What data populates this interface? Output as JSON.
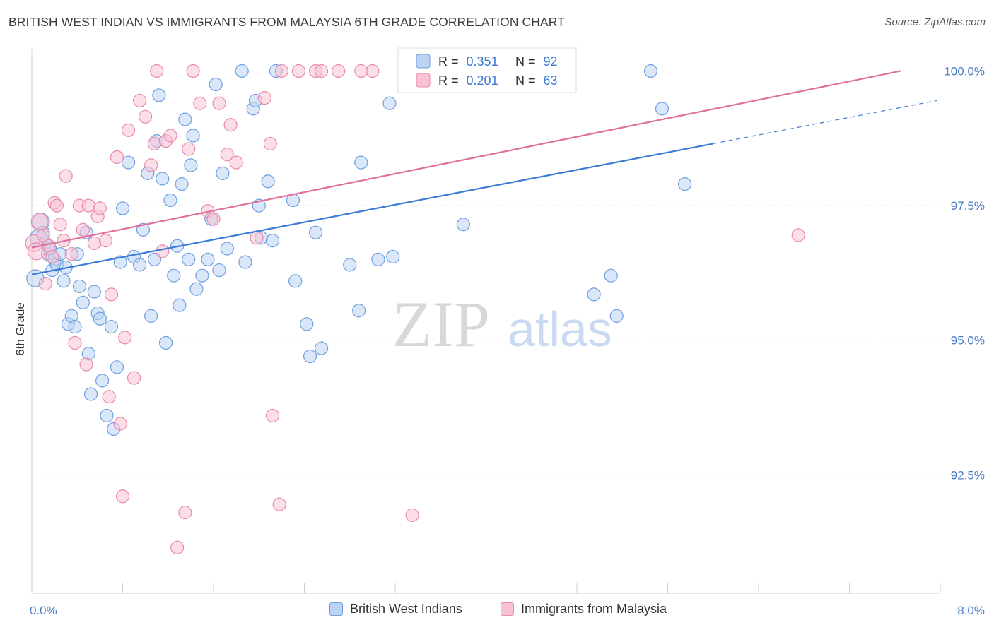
{
  "header": {
    "title": "BRITISH WEST INDIAN VS IMMIGRANTS FROM MALAYSIA 6TH GRADE CORRELATION CHART",
    "source": "Source: ZipAtlas.com"
  },
  "watermark": {
    "zip": "ZIP",
    "atlas": "atlas"
  },
  "colors": {
    "blue": "#6e9fe0",
    "blue_fill": "#bcd3f4",
    "blue_line": "#3a7bd5",
    "pink": "#e98aab",
    "pink_fill": "#f7c3d4",
    "pink_line": "#e0709a",
    "tick_label": "#4a7cc9",
    "grid": "#e4e4e4"
  },
  "chart_data": {
    "type": "scatter",
    "title": "BRITISH WEST INDIAN VS IMMIGRANTS FROM MALAYSIA 6TH GRADE CORRELATION CHART",
    "xlabel": "",
    "ylabel": "6th Grade",
    "xlim": [
      0.0,
      8.0
    ],
    "ylim": [
      90.3,
      100.4
    ],
    "x_tick_labels": [
      "0.0%",
      "8.0%"
    ],
    "y_ticks": [
      92.5,
      95.0,
      97.5,
      100.0
    ],
    "y_tick_labels": [
      "92.5%",
      "95.0%",
      "97.5%",
      "100.0%"
    ],
    "grid": true,
    "legend_top": [
      {
        "r_label": "R =",
        "r": "0.351",
        "n_label": "N =",
        "n": "92"
      },
      {
        "r_label": "R =",
        "r": "0.201",
        "n_label": "N =",
        "n": "63"
      }
    ],
    "series": [
      {
        "name": "British West Indians",
        "color": "#6e9fe0",
        "trend": {
          "x0": 0.0,
          "y0": 96.22,
          "x1": 6.0,
          "y1": 98.65,
          "dash_to_x": 8.0,
          "dash_to_y": 99.45
        },
        "points": [
          [
            0.03,
            96.15
          ],
          [
            0.08,
            97.2
          ],
          [
            0.1,
            97.0
          ],
          [
            0.12,
            96.8
          ],
          [
            0.14,
            96.6
          ],
          [
            0.16,
            96.7
          ],
          [
            0.18,
            96.3
          ],
          [
            0.2,
            96.5
          ],
          [
            0.22,
            96.4
          ],
          [
            0.25,
            96.6
          ],
          [
            0.28,
            96.1
          ],
          [
            0.3,
            96.35
          ],
          [
            0.32,
            95.3
          ],
          [
            0.35,
            95.45
          ],
          [
            0.38,
            95.25
          ],
          [
            0.4,
            96.6
          ],
          [
            0.42,
            96.0
          ],
          [
            0.45,
            95.7
          ],
          [
            0.48,
            97.0
          ],
          [
            0.5,
            94.75
          ],
          [
            0.52,
            94.0
          ],
          [
            0.55,
            95.9
          ],
          [
            0.58,
            95.5
          ],
          [
            0.6,
            95.4
          ],
          [
            0.62,
            94.25
          ],
          [
            0.66,
            93.6
          ],
          [
            0.7,
            95.25
          ],
          [
            0.72,
            93.35
          ],
          [
            0.75,
            94.5
          ],
          [
            0.78,
            96.45
          ],
          [
            0.8,
            97.45
          ],
          [
            0.85,
            98.3
          ],
          [
            0.9,
            96.55
          ],
          [
            0.95,
            96.4
          ],
          [
            0.98,
            97.05
          ],
          [
            1.02,
            98.1
          ],
          [
            1.05,
            95.45
          ],
          [
            1.08,
            96.5
          ],
          [
            1.1,
            98.7
          ],
          [
            1.12,
            99.55
          ],
          [
            1.15,
            98.0
          ],
          [
            1.18,
            94.95
          ],
          [
            1.22,
            97.6
          ],
          [
            1.25,
            96.2
          ],
          [
            1.28,
            96.75
          ],
          [
            1.3,
            95.65
          ],
          [
            1.32,
            97.9
          ],
          [
            1.35,
            99.1
          ],
          [
            1.38,
            96.5
          ],
          [
            1.4,
            98.25
          ],
          [
            1.42,
            98.8
          ],
          [
            1.45,
            95.95
          ],
          [
            1.5,
            96.2
          ],
          [
            1.55,
            96.5
          ],
          [
            1.58,
            97.25
          ],
          [
            1.62,
            99.75
          ],
          [
            1.65,
            96.3
          ],
          [
            1.68,
            98.1
          ],
          [
            1.72,
            96.7
          ],
          [
            1.85,
            100.0
          ],
          [
            1.88,
            96.45
          ],
          [
            1.95,
            99.3
          ],
          [
            1.97,
            99.45
          ],
          [
            2.0,
            97.5
          ],
          [
            2.02,
            96.9
          ],
          [
            2.08,
            97.95
          ],
          [
            2.12,
            96.85
          ],
          [
            2.15,
            100.0
          ],
          [
            2.3,
            97.6
          ],
          [
            2.32,
            96.1
          ],
          [
            2.42,
            95.3
          ],
          [
            2.45,
            94.7
          ],
          [
            2.5,
            97.0
          ],
          [
            2.55,
            94.85
          ],
          [
            2.8,
            96.4
          ],
          [
            2.88,
            95.55
          ],
          [
            2.9,
            98.3
          ],
          [
            3.05,
            96.5
          ],
          [
            3.15,
            99.4
          ],
          [
            3.18,
            96.55
          ],
          [
            3.5,
            100.0
          ],
          [
            3.55,
            100.0
          ],
          [
            3.8,
            97.15
          ],
          [
            4.15,
            100.0
          ],
          [
            4.95,
            95.85
          ],
          [
            5.1,
            96.2
          ],
          [
            5.15,
            95.45
          ],
          [
            5.45,
            100.0
          ],
          [
            5.55,
            99.3
          ],
          [
            5.75,
            97.9
          ],
          [
            3.65,
            100.0
          ],
          [
            0.06,
            96.9
          ]
        ]
      },
      {
        "name": "Immigrants from Malaysia",
        "color": "#e98aab",
        "trend": {
          "x0": 0.0,
          "y0": 96.72,
          "x1": 7.65,
          "y1": 100.0
        },
        "points": [
          [
            0.02,
            96.8
          ],
          [
            0.04,
            96.65
          ],
          [
            0.07,
            97.2
          ],
          [
            0.1,
            96.95
          ],
          [
            0.12,
            96.05
          ],
          [
            0.15,
            96.75
          ],
          [
            0.18,
            96.55
          ],
          [
            0.2,
            97.55
          ],
          [
            0.22,
            97.5
          ],
          [
            0.25,
            97.15
          ],
          [
            0.28,
            96.85
          ],
          [
            0.3,
            98.05
          ],
          [
            0.35,
            96.6
          ],
          [
            0.38,
            94.95
          ],
          [
            0.42,
            97.5
          ],
          [
            0.45,
            97.05
          ],
          [
            0.48,
            94.55
          ],
          [
            0.5,
            97.5
          ],
          [
            0.55,
            96.8
          ],
          [
            0.58,
            97.3
          ],
          [
            0.6,
            97.45
          ],
          [
            0.65,
            96.85
          ],
          [
            0.68,
            93.95
          ],
          [
            0.7,
            95.85
          ],
          [
            0.75,
            98.4
          ],
          [
            0.78,
            93.45
          ],
          [
            0.8,
            92.1
          ],
          [
            0.82,
            95.05
          ],
          [
            0.85,
            98.9
          ],
          [
            0.9,
            94.3
          ],
          [
            0.95,
            99.45
          ],
          [
            1.0,
            99.15
          ],
          [
            1.05,
            98.25
          ],
          [
            1.08,
            98.65
          ],
          [
            1.1,
            100.0
          ],
          [
            1.15,
            96.65
          ],
          [
            1.18,
            98.7
          ],
          [
            1.22,
            98.8
          ],
          [
            1.28,
            91.15
          ],
          [
            1.35,
            91.8
          ],
          [
            1.38,
            98.55
          ],
          [
            1.42,
            100.0
          ],
          [
            1.48,
            99.4
          ],
          [
            1.55,
            97.4
          ],
          [
            1.6,
            97.25
          ],
          [
            1.65,
            99.4
          ],
          [
            1.72,
            98.45
          ],
          [
            1.75,
            99.0
          ],
          [
            1.8,
            98.3
          ],
          [
            1.98,
            96.9
          ],
          [
            2.05,
            99.5
          ],
          [
            2.1,
            98.65
          ],
          [
            2.12,
            93.6
          ],
          [
            2.18,
            91.95
          ],
          [
            2.2,
            100.0
          ],
          [
            2.35,
            100.0
          ],
          [
            2.5,
            100.0
          ],
          [
            2.55,
            100.0
          ],
          [
            2.7,
            100.0
          ],
          [
            2.9,
            100.0
          ],
          [
            3.0,
            100.0
          ],
          [
            3.35,
            91.75
          ],
          [
            6.75,
            96.95
          ]
        ]
      }
    ]
  },
  "legend_bottom": [
    {
      "label": "British West Indians"
    },
    {
      "label": "Immigrants from Malaysia"
    }
  ]
}
